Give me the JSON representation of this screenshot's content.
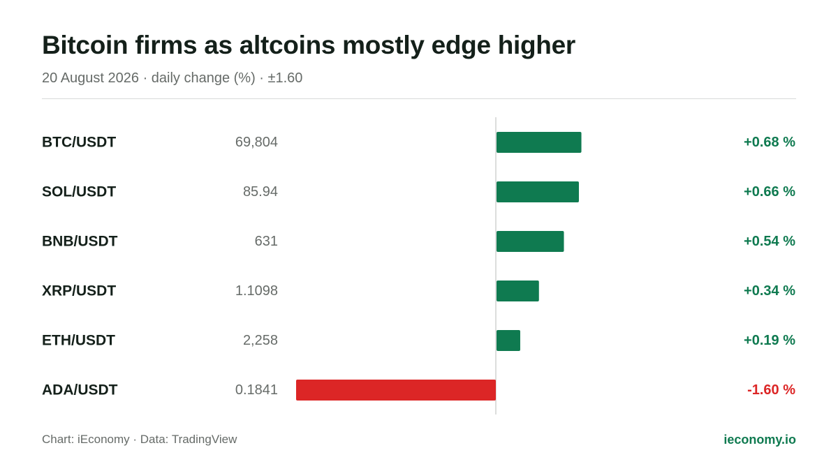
{
  "header": {
    "title": "Bitcoin firms as altcoins mostly edge higher",
    "subtitle": "20 August 2026 · daily change (%) · ±1.60"
  },
  "footer": {
    "source": "Chart: iEconomy · Data: TradingView",
    "brand": "ieconomy.io"
  },
  "colors": {
    "positive": "#0f7a50",
    "negative": "#dc2626",
    "label": "#14201a",
    "price": "#666b68",
    "axis": "#d0d2d1"
  },
  "chart_data": {
    "type": "bar",
    "orientation": "horizontal",
    "xlim": [
      -1.6,
      1.6
    ],
    "categories": [
      "BTC/USDT",
      "SOL/USDT",
      "BNB/USDT",
      "XRP/USDT",
      "ETH/USDT",
      "ADA/USDT"
    ],
    "prices": [
      "69,804",
      "85.94",
      "631",
      "1.1098",
      "2,258",
      "0.1841"
    ],
    "values": [
      0.68,
      0.66,
      0.54,
      0.34,
      0.19,
      -1.6
    ],
    "value_labels": [
      "+0.68 %",
      "+0.66 %",
      "+0.54 %",
      "+0.34 %",
      "+0.19 %",
      "-1.60 %"
    ],
    "grid": false,
    "legend": "none"
  }
}
